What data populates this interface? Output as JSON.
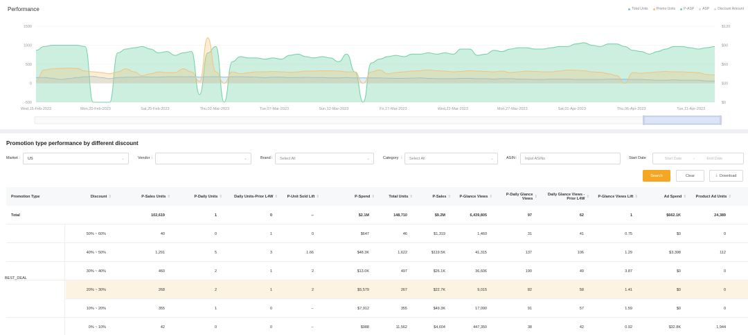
{
  "performance": {
    "title": "Performance",
    "legend": [
      {
        "label": "Total Units",
        "color": "#7fbfe8"
      },
      {
        "label": "Promo Units",
        "color": "#f5c27a"
      },
      {
        "label": "P-ASP",
        "color": "#6fd1a4"
      },
      {
        "label": "ASP",
        "color": "#d9d9d9"
      },
      {
        "label": "Discount Amount",
        "color": "#d9d9d9"
      }
    ]
  },
  "chart_data": {
    "type": "area",
    "x_ticks": [
      "Wed,15-Feb-2023",
      "Mon,20-Feb-2023",
      "Sat,25-Feb-2023",
      "Thu,02-Mar-2023",
      "Tue,07-Mar-2023",
      "Sun,12-Mar-2023",
      "Fri,17-Mar-2023",
      "Wed,22-Mar-2023",
      "Mon,27-Mar-2023",
      "Sat,01-Apr-2023",
      "Thu,06-Apr-2023",
      "Tue,11-Apr-2023"
    ],
    "y_left_ticks": [
      "1500",
      "1000",
      "500",
      "0",
      "-500"
    ],
    "y_right_ticks": [
      "$120",
      "$90",
      "$60",
      "$30",
      "$0"
    ],
    "ylim_left": [
      -500,
      1500
    ],
    "ylim_right": [
      0,
      120
    ],
    "series": [
      {
        "name": "P-ASP",
        "axis": "right",
        "color": "#6fd1a4",
        "values": [
          82,
          88,
          90,
          90,
          90,
          90,
          88,
          0,
          0,
          0,
          78,
          84,
          86,
          88,
          84,
          78,
          80,
          74,
          78,
          80,
          12,
          78,
          88,
          0,
          64,
          72,
          70,
          70,
          68,
          70,
          68,
          74,
          76,
          72,
          70,
          72,
          70,
          64,
          76,
          48,
          0,
          62,
          68,
          72,
          74,
          72,
          76,
          76,
          78,
          76,
          78,
          76,
          84,
          84,
          74,
          76,
          82,
          80,
          84,
          86,
          86,
          84,
          84,
          86,
          88,
          88,
          92,
          94,
          90,
          88,
          92,
          92,
          88,
          82,
          80,
          76,
          80,
          84,
          88,
          88,
          86,
          84,
          86,
          88
        ]
      },
      {
        "name": "Total Units",
        "axis": "left",
        "color": "#7fbfe8",
        "values": [
          150,
          150,
          130,
          100,
          120,
          150,
          170,
          180,
          150,
          120,
          150,
          160,
          160,
          170,
          160,
          160,
          170,
          170,
          170,
          170,
          160,
          170,
          170,
          160,
          170,
          170,
          165,
          160,
          150,
          160,
          160,
          150,
          150,
          155,
          150,
          150,
          140,
          140,
          150,
          140,
          140,
          140,
          140,
          135,
          130,
          130,
          135,
          140,
          130,
          120,
          120,
          120,
          130,
          130,
          120,
          120,
          110,
          120,
          120,
          110,
          110,
          100,
          100,
          110,
          110,
          110,
          100,
          100,
          100,
          100,
          110,
          110,
          105,
          100,
          100,
          90,
          80,
          80,
          90,
          80,
          80,
          80,
          60,
          60
        ]
      },
      {
        "name": "Promo Units",
        "axis": "left",
        "color": "#f5c27a",
        "values": [
          60,
          350,
          380,
          390,
          400,
          390,
          320,
          300,
          280,
          250,
          300,
          380,
          300,
          200,
          250,
          300,
          280,
          280,
          380,
          300,
          50,
          1200,
          300,
          0,
          300,
          250,
          280,
          300,
          300,
          310,
          300,
          290,
          300,
          320,
          320,
          330,
          330,
          320,
          300,
          300,
          0,
          300,
          350,
          250,
          280,
          300,
          320,
          330,
          350,
          330,
          320,
          300,
          310,
          330,
          320,
          310,
          300,
          320,
          280,
          300,
          320,
          310,
          300,
          300,
          320,
          350,
          340,
          330,
          300,
          290,
          250,
          200,
          0,
          280,
          260,
          280,
          300,
          310,
          300,
          300,
          290,
          280,
          230,
          220
        ]
      }
    ]
  },
  "filters": {
    "section_title": "Promotion type performance by different discount",
    "market_label": "Market",
    "market_value": "US",
    "vendor_label": "Vendor",
    "brand_label": "Brand",
    "brand_placeholder": "Select All",
    "category_label": "Category",
    "category_placeholder": "Select All",
    "asin_label": "ASIN",
    "asin_placeholder": "Input ASINs",
    "start_date_label": "Start Date",
    "start_placeholder": "Start Date",
    "end_placeholder": "End Date",
    "search_label": "Search",
    "clear_label": "Clear",
    "download_label": "Download"
  },
  "table": {
    "columns": [
      {
        "label": "Promotion Type",
        "sort": false
      },
      {
        "label": "Discount",
        "sort": true
      },
      {
        "label": "P-Sales Units",
        "sort": true
      },
      {
        "label": "P-Daily Units",
        "sort": true
      },
      {
        "label": "Daily Units-Prior L4W",
        "sort": true
      },
      {
        "label": "P-Unit Sold Lift",
        "sort": true
      },
      {
        "label": "P-Spend",
        "sort": true
      },
      {
        "label": "Total Units",
        "sort": true
      },
      {
        "label": "P-Sales",
        "sort": true
      },
      {
        "label": "P-Glance Views",
        "sort": true
      },
      {
        "label": "P-Daily Glance Views",
        "sort": true
      },
      {
        "label": "Daily Glance Views - Prior L4W",
        "sort": true
      },
      {
        "label": "P-Glance Views Lift",
        "sort": true
      },
      {
        "label": "Ad Spend",
        "sort": true
      },
      {
        "label": "Product Ad Units",
        "sort": true
      }
    ],
    "total": [
      "Total",
      "",
      "102,619",
      "1",
      "0",
      "--",
      "$2.1M",
      "148,710",
      "$9.2M",
      "6,439,805",
      "97",
      "62",
      "1",
      "$662.1K",
      "24,389"
    ],
    "group_label": "BEST_DEAL",
    "rows": [
      [
        "50% ~ 60%",
        "40",
        "0",
        "1",
        "0",
        "$647",
        "46",
        "$1,319",
        "1,460",
        "31",
        "41",
        "0.75",
        "$0",
        "0"
      ],
      [
        "40% ~ 50%",
        "1,291",
        "5",
        "3",
        "1.66",
        "$48.3K",
        "1,622",
        "$119.5K",
        "41,315",
        "137",
        "106",
        "1.29",
        "$3,398",
        "112"
      ],
      [
        "30% ~ 40%",
        "460",
        "2",
        "1",
        "2",
        "$13.0K",
        "497",
        "$26.1K",
        "36,606",
        "190",
        "49",
        "3.87",
        "$0",
        "0"
      ],
      [
        "20% ~ 30%",
        "268",
        "2",
        "1",
        "2",
        "$5,579",
        "267",
        "$22.7K",
        "9,015",
        "82",
        "58",
        "1.41",
        "$0",
        "0"
      ],
      [
        "10% ~ 20%",
        "355",
        "1",
        "0",
        "--",
        "$7,912",
        "355",
        "$49.3K",
        "17,090",
        "91",
        "57",
        "1.59",
        "$0",
        "0"
      ],
      [
        "0% ~ 10%",
        "42",
        "0",
        "0",
        "--",
        "$988",
        "11,562",
        "$4,604",
        "447,350",
        "38",
        "42",
        "0.92",
        "$32.8K",
        "1,944"
      ]
    ],
    "highlighted_row": 3
  }
}
